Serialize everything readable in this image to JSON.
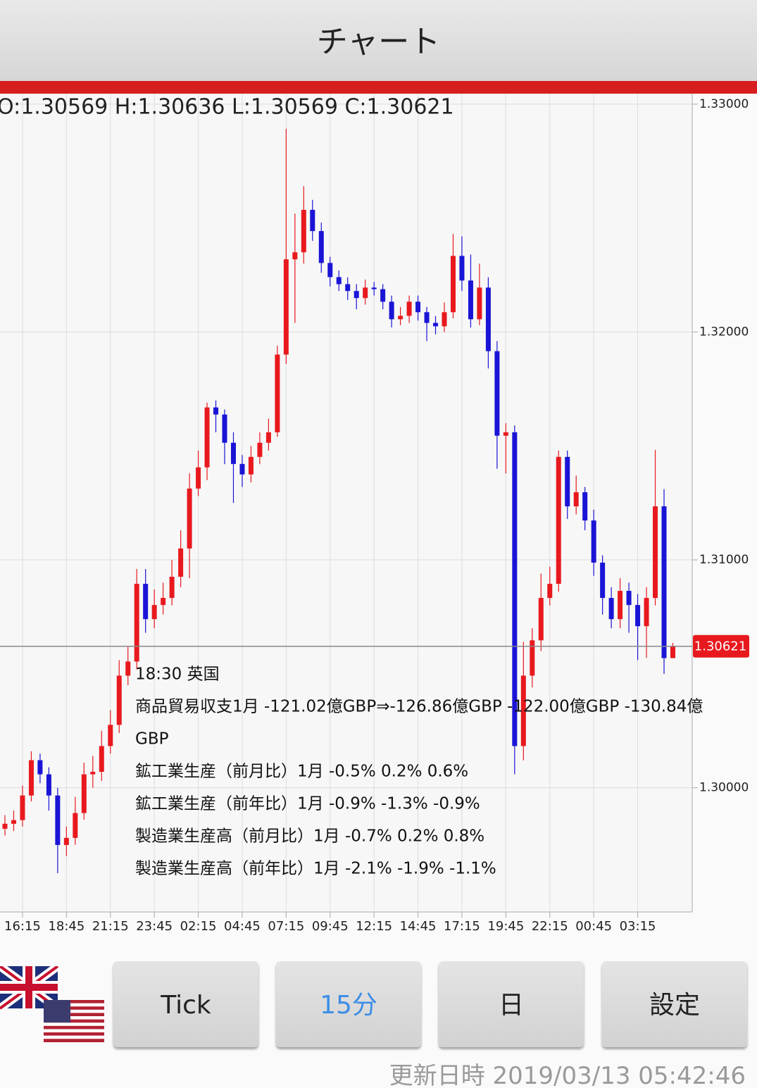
{
  "header": {
    "title": "チャート"
  },
  "chart_data": {
    "type": "candlestick",
    "ohlc_label": "O:1.30569 H:1.30636 L:1.30569 C:1.30621",
    "categories": [
      null,
      null,
      "16:15",
      null,
      null,
      null,
      null,
      "18:45",
      null,
      null,
      null,
      null,
      "21:15",
      null,
      null,
      null,
      null,
      "23:45",
      null,
      null,
      null,
      null,
      "02:15",
      null,
      null,
      null,
      null,
      "04:45",
      null,
      null,
      null,
      null,
      "07:15",
      null,
      null,
      null,
      null,
      "09:45",
      null,
      null,
      null,
      null,
      "12:15",
      null,
      null,
      null,
      null,
      "14:45",
      null,
      null,
      null,
      null,
      "17:15",
      null,
      null,
      null,
      null,
      "19:45",
      null,
      null,
      null,
      null,
      "22:15",
      null,
      null,
      null,
      null,
      "00:45",
      null,
      null,
      null,
      null,
      "03:15",
      null,
      null,
      null,
      null
    ],
    "open": [
      1.2982,
      1.29842,
      1.29858,
      1.29966,
      1.30121,
      1.30059,
      1.29966,
      1.29749,
      1.2978,
      1.29889,
      1.30059,
      1.3007,
      1.30183,
      1.30276,
      1.30492,
      1.30554,
      1.30895,
      1.3074,
      1.30802,
      1.30833,
      1.30926,
      1.3105,
      1.31313,
      1.31406,
      1.31669,
      1.31638,
      1.31514,
      1.31421,
      1.31375,
      1.31452,
      1.31514,
      1.3156,
      1.31901,
      1.32319,
      1.3235,
      1.32536,
      1.32443,
      1.32303,
      1.32241,
      1.3221,
      1.3218,
      1.32149,
      1.32195,
      1.32188,
      1.32133,
      1.32056,
      1.32071,
      1.32133,
      1.32087,
      1.3204,
      1.32025,
      1.32087,
      1.32334,
      1.32226,
      1.32056,
      1.32195,
      1.31916,
      1.31545,
      1.3156,
      1.30183,
      1.30492,
      1.30647,
      1.30833,
      1.30895,
      1.31452,
      1.31235,
      1.31297,
      1.31173,
      1.30988,
      1.30833,
      1.3074,
      1.30864,
      1.30802,
      1.30709,
      1.30833,
      1.31235,
      1.30569
    ],
    "high": [
      1.2988,
      1.299,
      1.3001,
      1.3016,
      1.3015,
      1.3009,
      1.3,
      1.2983,
      1.2996,
      1.3011,
      1.3014,
      1.3025,
      1.3034,
      1.3056,
      1.3062,
      1.3096,
      1.3096,
      1.3087,
      1.309,
      1.31,
      1.3113,
      1.3138,
      1.3148,
      1.3169,
      1.317,
      1.3166,
      1.3156,
      1.3146,
      1.315,
      1.3156,
      1.3162,
      1.3194,
      1.32892,
      1.3252,
      1.3264,
      1.3258,
      1.3248,
      1.3233,
      1.3227,
      1.3224,
      1.3221,
      1.3223,
      1.3222,
      1.3221,
      1.3216,
      1.3211,
      1.3216,
      1.3216,
      1.3211,
      1.3207,
      1.3213,
      1.3243,
      1.3242,
      1.3234,
      1.323,
      1.3224,
      1.3196,
      1.316,
      1.3159,
      1.3064,
      1.307,
      1.3094,
      1.3097,
      1.3148,
      1.3148,
      1.3137,
      1.3132,
      1.3122,
      1.3102,
      1.3088,
      1.3092,
      1.309,
      1.3085,
      1.3088,
      1.31483,
      1.3131,
      1.30636
    ],
    "low": [
      1.2979,
      1.2981,
      1.2983,
      1.2994,
      1.3002,
      1.299,
      1.29625,
      1.297,
      1.2975,
      1.2986,
      1.3,
      1.3003,
      1.3015,
      1.3024,
      1.3045,
      1.3052,
      1.3068,
      1.307,
      1.3076,
      1.308,
      1.3088,
      1.3092,
      1.3128,
      1.3135,
      1.3156,
      1.3142,
      1.3125,
      1.3132,
      1.3134,
      1.3142,
      1.3148,
      1.3154,
      1.3186,
      1.3204,
      1.323,
      1.324,
      1.3226,
      1.322,
      1.3218,
      1.3214,
      1.321,
      1.3212,
      1.3216,
      1.321,
      1.3202,
      1.3203,
      1.3204,
      1.3205,
      1.3196,
      1.3199,
      1.32,
      1.3206,
      1.3218,
      1.3202,
      1.3203,
      1.3184,
      1.314,
      1.3138,
      1.30059,
      1.3012,
      1.3044,
      1.306,
      1.308,
      1.3086,
      1.3118,
      1.312,
      1.3113,
      1.3093,
      1.3076,
      1.307,
      1.307,
      1.3068,
      1.3056,
      1.3057,
      1.308,
      1.305,
      1.30569
    ],
    "close": [
      1.29842,
      1.29858,
      1.29966,
      1.30121,
      1.30059,
      1.29966,
      1.29749,
      1.2978,
      1.29889,
      1.30059,
      1.3007,
      1.30183,
      1.30276,
      1.30492,
      1.30554,
      1.30895,
      1.3074,
      1.30802,
      1.30833,
      1.30926,
      1.3105,
      1.31313,
      1.31406,
      1.31669,
      1.31638,
      1.31514,
      1.31421,
      1.31375,
      1.31452,
      1.31514,
      1.3156,
      1.31901,
      1.32319,
      1.3235,
      1.32536,
      1.32443,
      1.32303,
      1.32241,
      1.3221,
      1.3218,
      1.32149,
      1.32195,
      1.32188,
      1.32133,
      1.32056,
      1.32071,
      1.32133,
      1.32087,
      1.3204,
      1.32025,
      1.32087,
      1.32334,
      1.32226,
      1.32056,
      1.32195,
      1.31916,
      1.31545,
      1.3156,
      1.30183,
      1.30492,
      1.30647,
      1.30833,
      1.30895,
      1.31452,
      1.31235,
      1.31297,
      1.31173,
      1.30988,
      1.30833,
      1.3074,
      1.30864,
      1.30802,
      1.30709,
      1.30833,
      1.31235,
      1.30569,
      1.30621
    ],
    "up_color": "#e8191e",
    "down_color": "#1a14d6",
    "ylim": [
      1.29455,
      1.33046
    ],
    "yticks": [
      {
        "value": 1.33,
        "label": "1.33000"
      },
      {
        "value": 1.32,
        "label": "1.32000"
      },
      {
        "value": 1.31,
        "label": "1.31000"
      },
      {
        "value": 1.3,
        "label": "1.30000"
      }
    ],
    "last_price": 1.30621,
    "grid": true,
    "annotation": [
      "18:30 英国",
      "商品貿易収支1月 -121.02億GBP⇒-126.86億GBP -122.00億GBP -130.84億",
      "GBP",
      "鉱工業生産（前月比）1月 -0.5% 0.2% 0.6%",
      "鉱工業生産（前年比）1月 -0.9% -1.3% -0.9%",
      "製造業生産高（前月比）1月 -0.7% 0.2% 0.8%",
      "製造業生産高（前年比）1月 -2.1% -1.9% -1.1%"
    ]
  },
  "buttons": [
    "Tick",
    "15分",
    "日",
    "設定"
  ],
  "selected_button": 1,
  "footer": {
    "updated": "更新日時 2019/03/13 05:42:46"
  }
}
